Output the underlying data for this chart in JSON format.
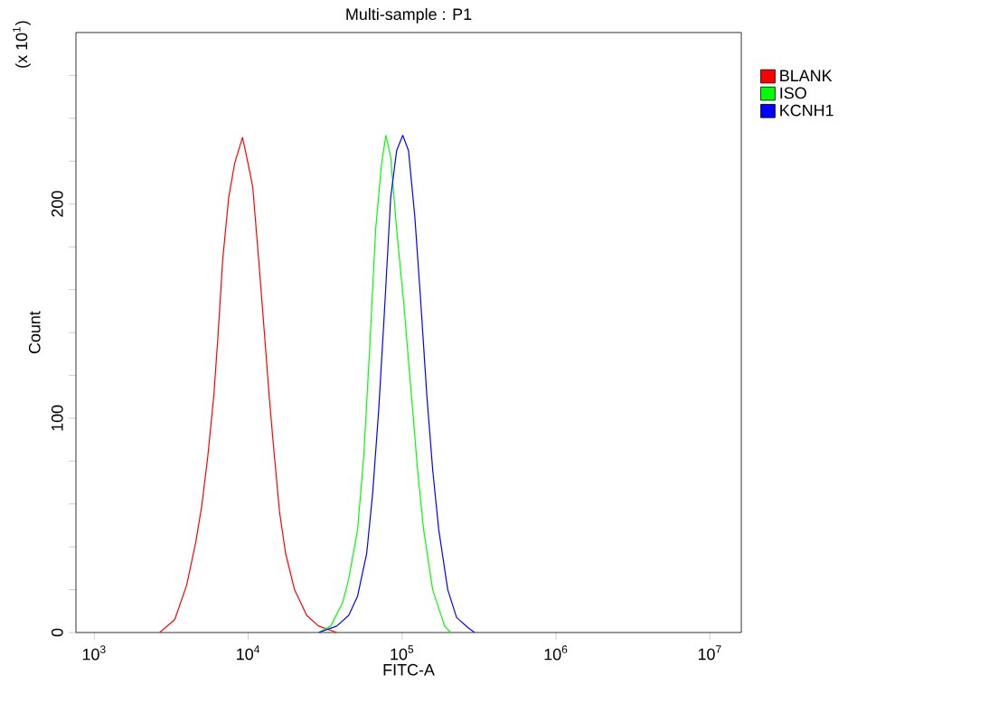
{
  "chart_data": {
    "type": "line",
    "title": "Multi-sample : P1",
    "xlabel": "FITC-A",
    "ylabel": "Count",
    "annotations": [
      "(x 10$^{1}$)"
    ],
    "log": "x",
    "legend": "top right",
    "grid": false,
    "marker": "none",
    "line_style": "solid",
    "xlim": [
      760,
      16000000
    ],
    "xticks": [
      {
        "value": 1000,
        "label": "10$^{3}$"
      },
      {
        "value": 10000,
        "label": "10$^{4}$"
      },
      {
        "value": 100000,
        "label": "10$^{5}$"
      },
      {
        "value": 1000000,
        "label": "10$^{6}$"
      },
      {
        "value": 10000000,
        "label": "10$^{7}$"
      }
    ],
    "ylim": [
      0,
      280
    ],
    "yticks": [
      0,
      {
        "value": 20,
        "label": null
      },
      {
        "value": 40,
        "label": null
      },
      {
        "value": 60,
        "label": null
      },
      {
        "value": 80,
        "label": null
      },
      100,
      {
        "value": 120,
        "label": null
      },
      {
        "value": 140,
        "label": null
      },
      {
        "value": 160,
        "label": null
      },
      {
        "value": 180,
        "label": null
      },
      200,
      {
        "value": 220,
        "label": null
      },
      {
        "value": 240,
        "label": null
      },
      {
        "value": 260,
        "label": null
      }
    ],
    "series": [
      {
        "name": "BLANK",
        "color": "#ff0000",
        "x": [
          2660,
          3330,
          3980,
          4560,
          4990,
          5460,
          5970,
          6360,
          6830,
          7470,
          8170,
          9180,
          9780,
          10700,
          11700,
          12800,
          13700,
          14600,
          16000,
          17500,
          20000,
          24000,
          28700,
          37600
        ],
        "values": [
          0,
          6,
          22,
          42,
          59,
          82,
          110,
          138,
          174,
          203,
          219,
          231,
          222,
          208,
          174,
          138,
          110,
          87,
          56,
          37,
          20,
          8,
          3,
          0
        ]
      },
      {
        "name": "ISO",
        "color": "#00ff00",
        "x": [
          28700,
          34400,
          41100,
          45000,
          51400,
          56300,
          61500,
          67300,
          73600,
          78500,
          84300,
          92200,
          103000,
          110000,
          119000,
          126000,
          138000,
          158000,
          189000,
          207000
        ],
        "values": [
          0,
          3,
          14,
          25,
          48,
          82,
          132,
          188,
          219,
          232,
          222,
          188,
          152,
          127,
          98,
          76,
          48,
          20,
          3,
          0
        ]
      },
      {
        "name": "KCNH1",
        "color": "#0000ff",
        "x": [
          28700,
          37600,
          45000,
          51400,
          58900,
          64400,
          70500,
          77100,
          84300,
          92200,
          101000,
          110000,
          121000,
          132000,
          145000,
          158000,
          173000,
          198000,
          226000,
          271000,
          296000
        ],
        "values": [
          0,
          3,
          8,
          17,
          37,
          65,
          104,
          152,
          203,
          225,
          232,
          225,
          194,
          155,
          110,
          76,
          48,
          20,
          7,
          2,
          0
        ]
      }
    ]
  }
}
